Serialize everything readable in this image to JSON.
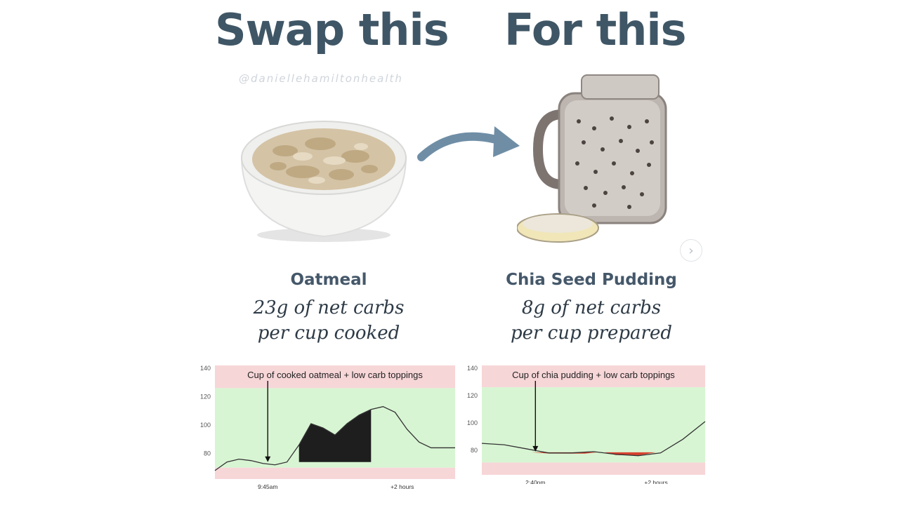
{
  "header": {
    "left_title": "Swap this",
    "right_title": "For this",
    "handle": "@daniellehamiltonhealth"
  },
  "left": {
    "name": "Oatmeal",
    "desc_line1": "23g of net carbs",
    "desc_line2": "per cup cooked",
    "image_label": "bowl of oatmeal"
  },
  "right": {
    "name": "Chia Seed Pudding",
    "desc_line1": "8g of net carbs",
    "desc_line2": "per cup prepared",
    "image_label": "jar of chia seed pudding"
  },
  "icons": {
    "swap_arrow": "curved-arrow-icon",
    "next": "chevron-right-icon"
  },
  "colors": {
    "heading": "#3f5666",
    "arrow": "#6f8ea6",
    "range_high": "#f7d6d8",
    "range_target": "#d8f5d3",
    "range_low": "#f7d6d8",
    "spike_fill": "#1e1e1e",
    "below_fill": "#d9412f"
  },
  "chart_data": [
    {
      "type": "line",
      "title": "Cup of cooked oatmeal + low carb toppings",
      "y_ticks": [
        140,
        120,
        100,
        80
      ],
      "ylim": [
        62,
        142
      ],
      "target_range": [
        70,
        126
      ],
      "x_ticks": [
        "9:45am",
        "+2 hours"
      ],
      "meal_marker": "9:45am",
      "series": [
        {
          "x": [
            0,
            5,
            10,
            15,
            20,
            25,
            30,
            35,
            40,
            45,
            50,
            55,
            60,
            65,
            70,
            75,
            80,
            85,
            90,
            95,
            100
          ],
          "y": [
            68,
            74,
            76,
            75,
            73,
            72,
            74,
            86,
            101,
            98,
            93,
            101,
            107,
            111,
            113,
            109,
            97,
            88,
            84,
            84,
            84
          ]
        }
      ],
      "shaded_above": "spike above baseline between meal and +2 hours"
    },
    {
      "type": "line",
      "title": "Cup of chia pudding + low carb toppings",
      "y_ticks": [
        140,
        120,
        100,
        80
      ],
      "ylim": [
        62,
        142
      ],
      "target_range": [
        71,
        126
      ],
      "x_ticks": [
        "2:40pm",
        "+2 hours"
      ],
      "meal_marker": "2:40pm",
      "series": [
        {
          "x": [
            0,
            10,
            20,
            30,
            40,
            50,
            60,
            70,
            80,
            90,
            100
          ],
          "y": [
            85,
            84,
            81,
            78,
            78,
            79,
            77,
            76,
            78,
            88,
            101
          ]
        }
      ],
      "shaded_below": "small dips below baseline"
    }
  ]
}
